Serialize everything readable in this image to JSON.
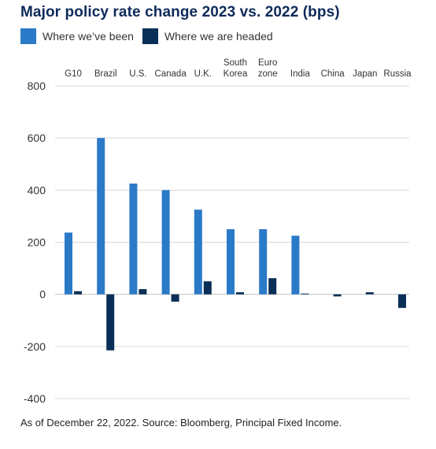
{
  "page": {
    "title": "Major policy rate change 2023 vs. 2022 (bps)",
    "footnote": "As of December 22, 2022. Source: Bloomberg, Principal Fixed Income."
  },
  "colors": {
    "title": "#0e2a5a",
    "series_1": "#2a7ac8",
    "series_2": "#0a2f57",
    "gridline": "#d9d9d9",
    "zero_line": "#bfbfbf"
  },
  "chart_data": {
    "type": "bar",
    "title": "Major policy rate change 2023 vs. 2022 (bps)",
    "xlabel": "",
    "ylabel": "",
    "ylim": [
      -400,
      800
    ],
    "y_ticks": [
      800,
      600,
      400,
      200,
      0,
      -200,
      -400
    ],
    "y_tick_labels": [
      "800",
      "600",
      "400",
      "200",
      "0",
      "-200",
      "-400"
    ],
    "grid": true,
    "legend_position": "top-left",
    "categories": [
      [
        "G10"
      ],
      [
        "Brazil"
      ],
      [
        "U.S."
      ],
      [
        "Canada"
      ],
      [
        "U.K."
      ],
      [
        "South",
        "Korea"
      ],
      [
        "Euro",
        "zone"
      ],
      [
        "India"
      ],
      [
        "China"
      ],
      [
        "Japan"
      ],
      [
        "Russia"
      ]
    ],
    "series": [
      {
        "name": "Where we’ve been",
        "color": "#2a7ac8",
        "values": [
          237,
          600,
          425,
          400,
          325,
          250,
          250,
          225,
          0,
          0,
          0
        ]
      },
      {
        "name": "Where we are headed",
        "color": "#0a2f57",
        "values": [
          12,
          -215,
          20,
          -28,
          50,
          8,
          62,
          3,
          -8,
          8,
          -52
        ]
      }
    ]
  }
}
